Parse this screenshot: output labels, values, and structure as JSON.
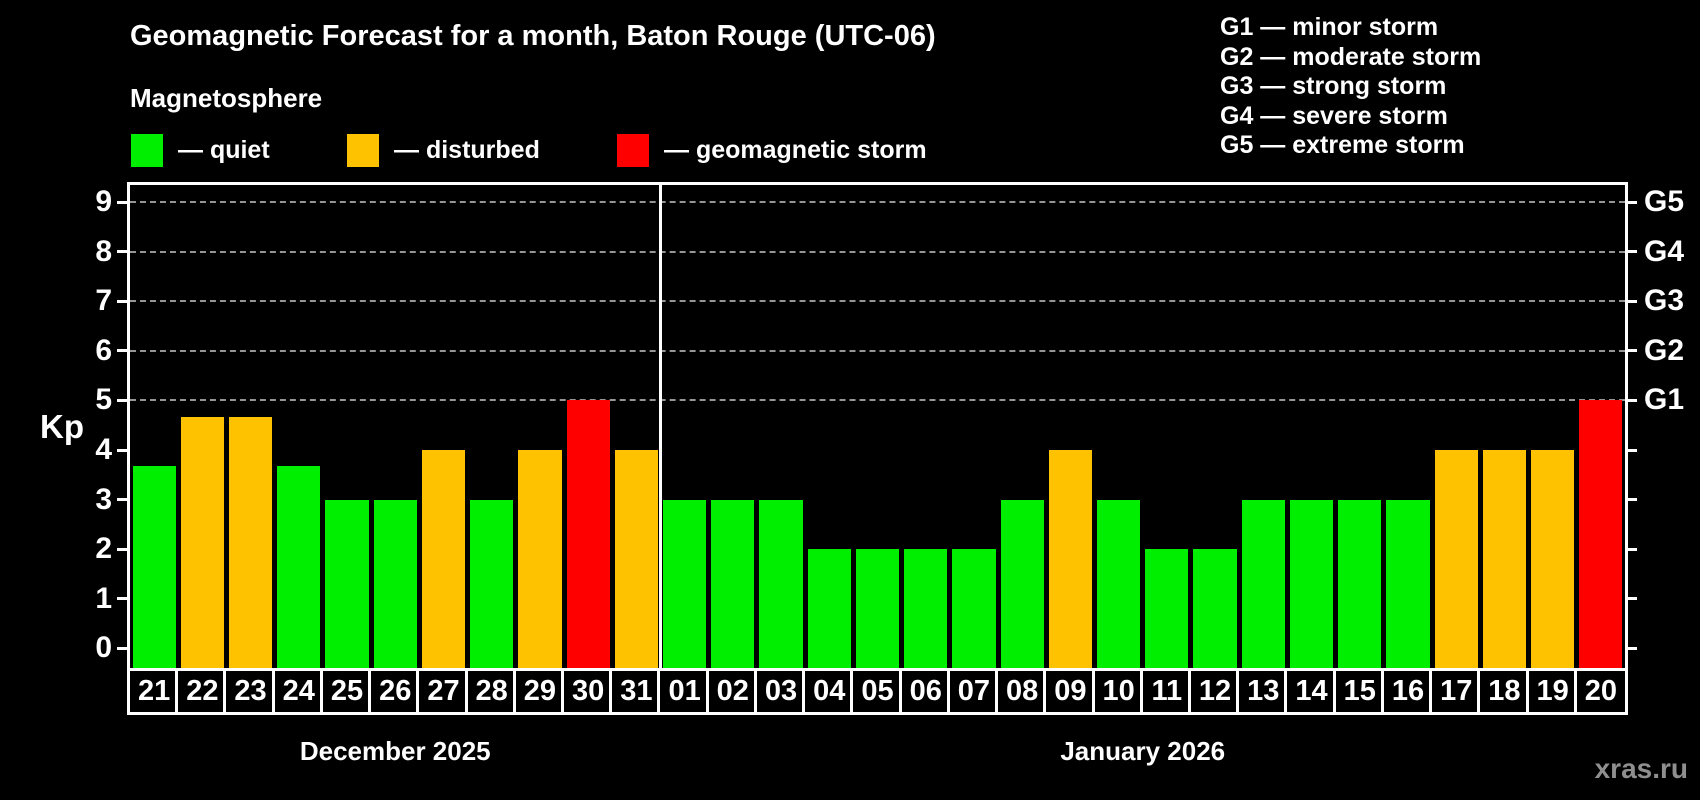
{
  "header": {
    "title": "Geomagnetic Forecast for a month, Baton Rouge (UTC-06)",
    "subtitle": "Magnetosphere"
  },
  "legend": {
    "items": [
      {
        "status": "quiet",
        "label": "— quiet"
      },
      {
        "status": "disturbed",
        "label": "— disturbed"
      },
      {
        "status": "storm",
        "label": "— geomagnetic storm"
      }
    ]
  },
  "g_legend": [
    "G1 — minor storm",
    "G2 — moderate storm",
    "G3 — strong storm",
    "G4 — severe storm",
    "G5 — extreme storm"
  ],
  "watermark": "xras.ru",
  "chart_data": {
    "type": "bar",
    "title": "Geomagnetic Forecast for a month, Baton Rouge (UTC-06)",
    "ylabel": "Kp",
    "ylim": [
      -0.4,
      9.35
    ],
    "yticks": [
      0,
      1,
      2,
      3,
      4,
      5,
      6,
      7,
      8,
      9
    ],
    "gridlines_at": [
      5,
      6,
      7,
      8,
      9
    ],
    "grid": "dashed-horizontal",
    "right_axis": [
      {
        "kp": 5,
        "label": "G1"
      },
      {
        "kp": 6,
        "label": "G2"
      },
      {
        "kp": 7,
        "label": "G3"
      },
      {
        "kp": 8,
        "label": "G4"
      },
      {
        "kp": 9,
        "label": "G5"
      }
    ],
    "status_colors": {
      "quiet": "#00ee00",
      "disturbed": "#ffc200",
      "storm": "#ff0000"
    },
    "groups": [
      {
        "month_label": "December 2025",
        "days": [
          {
            "day": "21",
            "kp": 3.67,
            "status": "quiet"
          },
          {
            "day": "22",
            "kp": 4.67,
            "status": "disturbed"
          },
          {
            "day": "23",
            "kp": 4.67,
            "status": "disturbed"
          },
          {
            "day": "24",
            "kp": 3.67,
            "status": "quiet"
          },
          {
            "day": "25",
            "kp": 3,
            "status": "quiet"
          },
          {
            "day": "26",
            "kp": 3,
            "status": "quiet"
          },
          {
            "day": "27",
            "kp": 4,
            "status": "disturbed"
          },
          {
            "day": "28",
            "kp": 3,
            "status": "quiet"
          },
          {
            "day": "29",
            "kp": 4,
            "status": "disturbed"
          },
          {
            "day": "30",
            "kp": 5,
            "status": "storm"
          },
          {
            "day": "31",
            "kp": 4,
            "status": "disturbed"
          }
        ]
      },
      {
        "month_label": "January 2026",
        "days": [
          {
            "day": "01",
            "kp": 3,
            "status": "quiet"
          },
          {
            "day": "02",
            "kp": 3,
            "status": "quiet"
          },
          {
            "day": "03",
            "kp": 3,
            "status": "quiet"
          },
          {
            "day": "04",
            "kp": 2,
            "status": "quiet"
          },
          {
            "day": "05",
            "kp": 2,
            "status": "quiet"
          },
          {
            "day": "06",
            "kp": 2,
            "status": "quiet"
          },
          {
            "day": "07",
            "kp": 2,
            "status": "quiet"
          },
          {
            "day": "08",
            "kp": 3,
            "status": "quiet"
          },
          {
            "day": "09",
            "kp": 4,
            "status": "disturbed"
          },
          {
            "day": "10",
            "kp": 3,
            "status": "quiet"
          },
          {
            "day": "11",
            "kp": 2,
            "status": "quiet"
          },
          {
            "day": "12",
            "kp": 2,
            "status": "quiet"
          },
          {
            "day": "13",
            "kp": 3,
            "status": "quiet"
          },
          {
            "day": "14",
            "kp": 3,
            "status": "quiet"
          },
          {
            "day": "15",
            "kp": 3,
            "status": "quiet"
          },
          {
            "day": "16",
            "kp": 3,
            "status": "quiet"
          },
          {
            "day": "17",
            "kp": 4,
            "status": "disturbed"
          },
          {
            "day": "18",
            "kp": 4,
            "status": "disturbed"
          },
          {
            "day": "19",
            "kp": 4,
            "status": "disturbed"
          },
          {
            "day": "20",
            "kp": 5,
            "status": "storm"
          }
        ]
      }
    ]
  }
}
